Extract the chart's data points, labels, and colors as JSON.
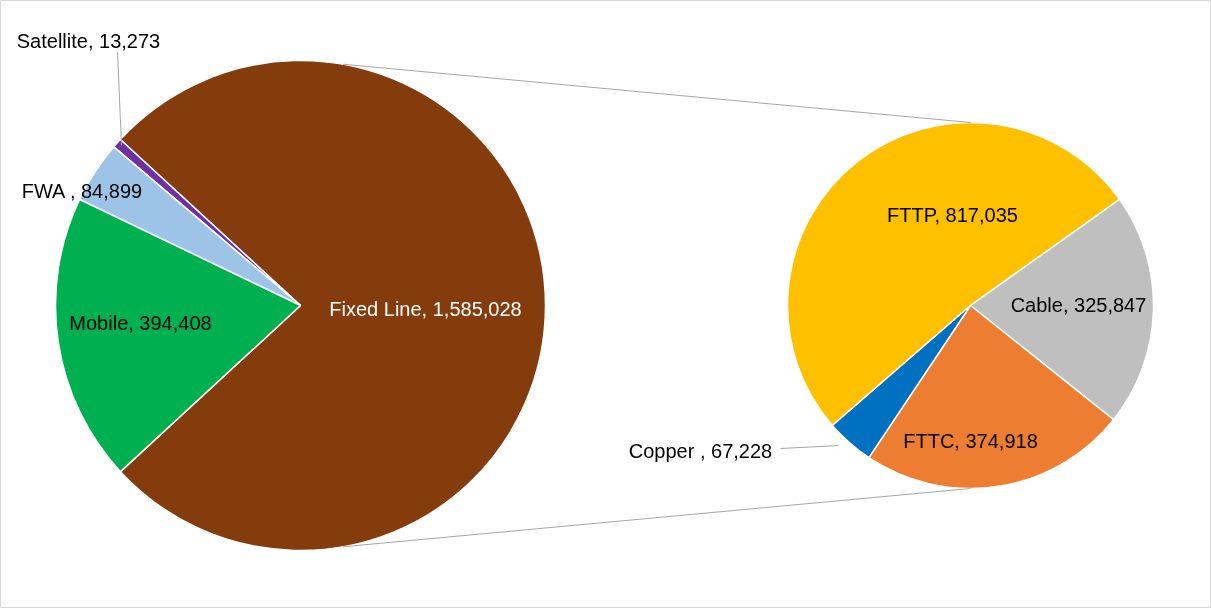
{
  "chart_data": [
    {
      "type": "pie",
      "categories": [
        "Fixed Line",
        "Satellite",
        "FWA ",
        "Mobile"
      ],
      "values": [
        1585028,
        13273,
        84899,
        394408
      ],
      "value_labels": [
        "1,585,028",
        "13,273",
        "84,899",
        "394,408"
      ],
      "colors": [
        "#843c0c",
        "#7030a0",
        "#9dc3e6",
        "#00b050"
      ]
    },
    {
      "type": "pie",
      "categories": [
        "FTTP",
        "Cable",
        "FTTC",
        "Copper "
      ],
      "values": [
        817035,
        325847,
        374918,
        67228
      ],
      "value_labels": [
        "817,035",
        "325,847",
        "374,918",
        "67,228"
      ],
      "colors": [
        "#ffc000",
        "#bfbfbf",
        "#ed7d31",
        "#0070c0"
      ]
    }
  ]
}
